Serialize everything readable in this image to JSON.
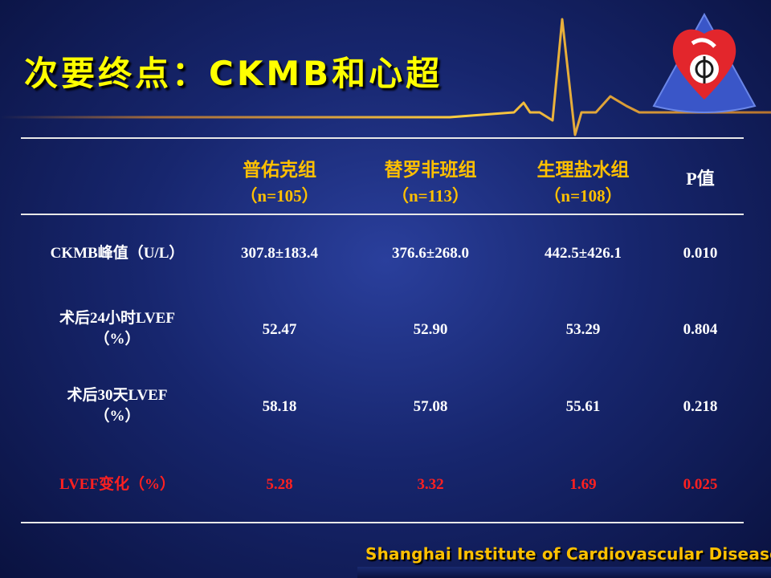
{
  "slide": {
    "title": "次要终点：CKMB和心超",
    "footer": "Shanghai Institute of Cardiovascular Diseases"
  },
  "table": {
    "columns": [
      {
        "name": "普佑克组",
        "n": "（n=105）"
      },
      {
        "name": "替罗非班组",
        "n": "（n=113）"
      },
      {
        "name": "生理盐水组",
        "n": "（n=108）"
      }
    ],
    "p_header": "P值",
    "rows": [
      {
        "label": "CKMB峰值（U/L）",
        "label2": "",
        "values": [
          "307.8±183.4",
          "376.6±268.0",
          "442.5±426.1"
        ],
        "p": "0.010",
        "highlight": false
      },
      {
        "label": "术后24小时LVEF",
        "label2": "（%）",
        "values": [
          "52.47",
          "52.90",
          "53.29"
        ],
        "p": "0.804",
        "highlight": false
      },
      {
        "label": "术后30天LVEF",
        "label2": "（%）",
        "values": [
          "58.18",
          "57.08",
          "55.61"
        ],
        "p": "0.218",
        "highlight": false
      },
      {
        "label": "LVEF变化（%）",
        "label2": "",
        "values": [
          "5.28",
          "3.32",
          "1.69"
        ],
        "p": "0.025",
        "highlight": true
      }
    ]
  },
  "colors": {
    "title": "#ffff00",
    "header": "#ffc000",
    "highlight": "#ff2020",
    "ecg_line": "#ffcc33"
  },
  "icons": {
    "logo": "institute-heart-logo-icon",
    "ecg": "ecg-trace-icon"
  }
}
